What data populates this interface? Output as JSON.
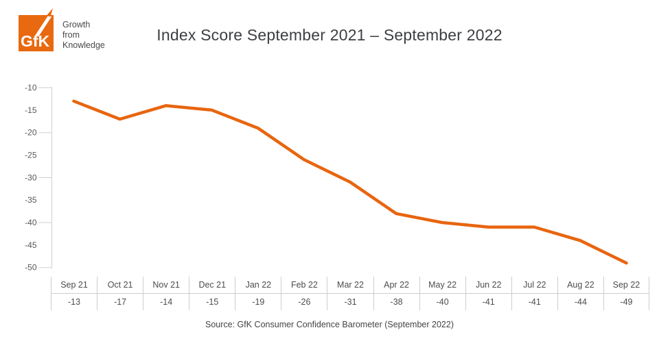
{
  "brand": {
    "logo_text": "GfK",
    "logo_color": "#E8690F",
    "tagline": [
      "Growth",
      "from",
      "Knowledge"
    ]
  },
  "header": {
    "title": "Index Score September 2021 – September 2022"
  },
  "chart_data": {
    "type": "line",
    "title": "Index Score September 2021 – September 2022",
    "categories": [
      "Sep 21",
      "Oct 21",
      "Nov 21",
      "Dec 21",
      "Jan 22",
      "Feb 22",
      "Mar 22",
      "Apr 22",
      "May 22",
      "Jun 22",
      "Jul 22",
      "Aug 22",
      "Sep 22"
    ],
    "values": [
      -13,
      -17,
      -14,
      -15,
      -19,
      -26,
      -31,
      -38,
      -40,
      -41,
      -41,
      -44,
      -49
    ],
    "xlabel": "",
    "ylabel": "",
    "ylim": [
      -50,
      -10
    ],
    "ytick_labels": [
      "-10",
      "-15",
      "-20",
      "-25",
      "-30",
      "-35",
      "-40",
      "-45",
      "-50"
    ],
    "major_tick_values": [
      -10,
      -20,
      -30,
      -40,
      -50
    ],
    "grid": false,
    "legend_position": "none",
    "line_color": "#E8650F",
    "axis_color": "#D6D6D6",
    "tick_label_color": "#56575B"
  },
  "footer": {
    "source": "Source: GfK Consumer Confidence Barometer (September 2022)"
  }
}
